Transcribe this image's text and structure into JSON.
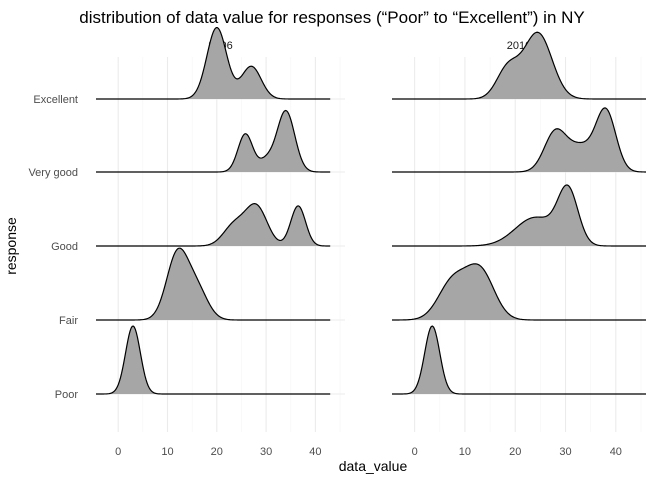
{
  "chart_data": {
    "type": "ridgeline",
    "title": "distribution of data value for responses (“Poor” to “Excellent”) in NY",
    "xlabel": "data_value",
    "ylabel": "response",
    "x_ticks": [
      0,
      10,
      20,
      30,
      40
    ],
    "xlim": [
      -4.5,
      46
    ],
    "categories": [
      "Poor",
      "Fair",
      "Good",
      "Very good",
      "Excellent"
    ],
    "fill_color": "#a6a6a6",
    "line_color": "#000000",
    "grid": true,
    "panels": [
      {
        "label": "2006",
        "ridges": [
          {
            "name": "Poor",
            "range": [
              -4.5,
              43
            ],
            "peaks": [
              {
                "mu": 3.0,
                "sd": 1.5,
                "h": 1.0
              }
            ]
          },
          {
            "name": "Fair",
            "range": [
              -4.5,
              43
            ],
            "peaks": [
              {
                "mu": 12.0,
                "sd": 2.2,
                "h": 0.96
              },
              {
                "mu": 16.0,
                "sd": 2.2,
                "h": 0.43
              }
            ]
          },
          {
            "name": "Good",
            "range": [
              -4.5,
              43
            ],
            "peaks": [
              {
                "mu": 23.5,
                "sd": 2.2,
                "h": 0.3
              },
              {
                "mu": 28.0,
                "sd": 2.2,
                "h": 0.58
              },
              {
                "mu": 36.5,
                "sd": 1.5,
                "h": 0.59
              }
            ]
          },
          {
            "name": "Very good",
            "range": [
              -4.5,
              43
            ],
            "peaks": [
              {
                "mu": 25.8,
                "sd": 1.5,
                "h": 0.56
              },
              {
                "mu": 30.0,
                "sd": 1.5,
                "h": 0.16
              },
              {
                "mu": 34.0,
                "sd": 1.8,
                "h": 0.9
              }
            ]
          },
          {
            "name": "Excellent",
            "range": [
              -4.5,
              43
            ],
            "peaks": [
              {
                "mu": 20.0,
                "sd": 2.0,
                "h": 1.05
              },
              {
                "mu": 27.0,
                "sd": 2.0,
                "h": 0.48
              }
            ]
          }
        ]
      },
      {
        "label": "2010",
        "ridges": [
          {
            "name": "Poor",
            "range": [
              -4.5,
              46
            ],
            "peaks": [
              {
                "mu": 3.5,
                "sd": 1.5,
                "h": 1.0
              }
            ]
          },
          {
            "name": "Fair",
            "range": [
              -4.5,
              46
            ],
            "peaks": [
              {
                "mu": 7.5,
                "sd": 2.8,
                "h": 0.55
              },
              {
                "mu": 13.0,
                "sd": 2.8,
                "h": 0.72
              }
            ]
          },
          {
            "name": "Good",
            "range": [
              -4.5,
              46
            ],
            "peaks": [
              {
                "mu": 24.0,
                "sd": 4.0,
                "h": 0.42
              },
              {
                "mu": 30.5,
                "sd": 2.0,
                "h": 0.78
              }
            ]
          },
          {
            "name": "Very good",
            "range": [
              -4.5,
              46
            ],
            "peaks": [
              {
                "mu": 28.0,
                "sd": 2.2,
                "h": 0.59
              },
              {
                "mu": 33.0,
                "sd": 2.4,
                "h": 0.35
              },
              {
                "mu": 38.0,
                "sd": 2.0,
                "h": 0.9
              }
            ]
          },
          {
            "name": "Excellent",
            "range": [
              -4.5,
              46
            ],
            "peaks": [
              {
                "mu": 18.5,
                "sd": 2.2,
                "h": 0.44
              },
              {
                "mu": 24.5,
                "sd": 2.8,
                "h": 0.97
              }
            ]
          }
        ]
      }
    ]
  }
}
